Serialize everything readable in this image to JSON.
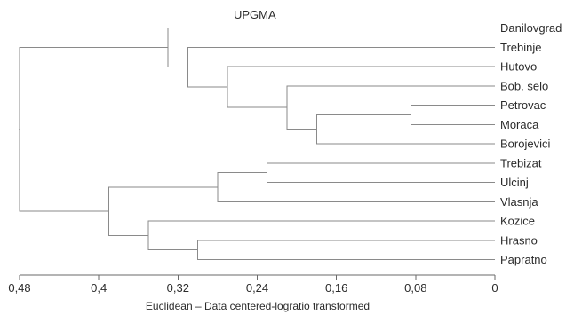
{
  "title": "UPGMA",
  "x_axis": {
    "label": "Euclidean – Data centered-logratio transformed",
    "ticks": [
      {
        "value": 0.48,
        "label": "0,48"
      },
      {
        "value": 0.4,
        "label": "0,4"
      },
      {
        "value": 0.32,
        "label": "0,32"
      },
      {
        "value": 0.24,
        "label": "0,24"
      },
      {
        "value": 0.16,
        "label": "0,16"
      },
      {
        "value": 0.08,
        "label": "0,08"
      },
      {
        "value": 0.0,
        "label": "0"
      }
    ]
  },
  "leaves": [
    "Danilovgrad",
    "Trebinje",
    "Hutovo",
    "Bob. selo",
    "Petrovac",
    "Moraca",
    "Borojevici",
    "Trebizat",
    "Ulcinj",
    "Vlasnja",
    "Kozice",
    "Hrasno",
    "Papratno"
  ],
  "merges": [
    {
      "id": "m1",
      "a": "Petrovac",
      "b": "Moraca",
      "height": 0.085
    },
    {
      "id": "m2",
      "a": "m1",
      "b": "Borojevici",
      "height": 0.18
    },
    {
      "id": "m3",
      "a": "Bob. selo",
      "b": "m2",
      "height": 0.21
    },
    {
      "id": "m4",
      "a": "Hutovo",
      "b": "m3",
      "height": 0.27
    },
    {
      "id": "m5",
      "a": "Trebinje",
      "b": "m4",
      "height": 0.31
    },
    {
      "id": "m6",
      "a": "Danilovgrad",
      "b": "m5",
      "height": 0.33
    },
    {
      "id": "m7",
      "a": "Trebizat",
      "b": "Ulcinj",
      "height": 0.23
    },
    {
      "id": "m8",
      "a": "m7",
      "b": "Vlasnja",
      "height": 0.28
    },
    {
      "id": "m9",
      "a": "Hrasno",
      "b": "Papratno",
      "height": 0.3
    },
    {
      "id": "m10",
      "a": "Kozice",
      "b": "m9",
      "height": 0.35
    },
    {
      "id": "m11",
      "a": "m8",
      "b": "m10",
      "height": 0.39
    },
    {
      "id": "m12",
      "a": "m6",
      "b": "m11",
      "height": 0.48
    }
  ]
}
